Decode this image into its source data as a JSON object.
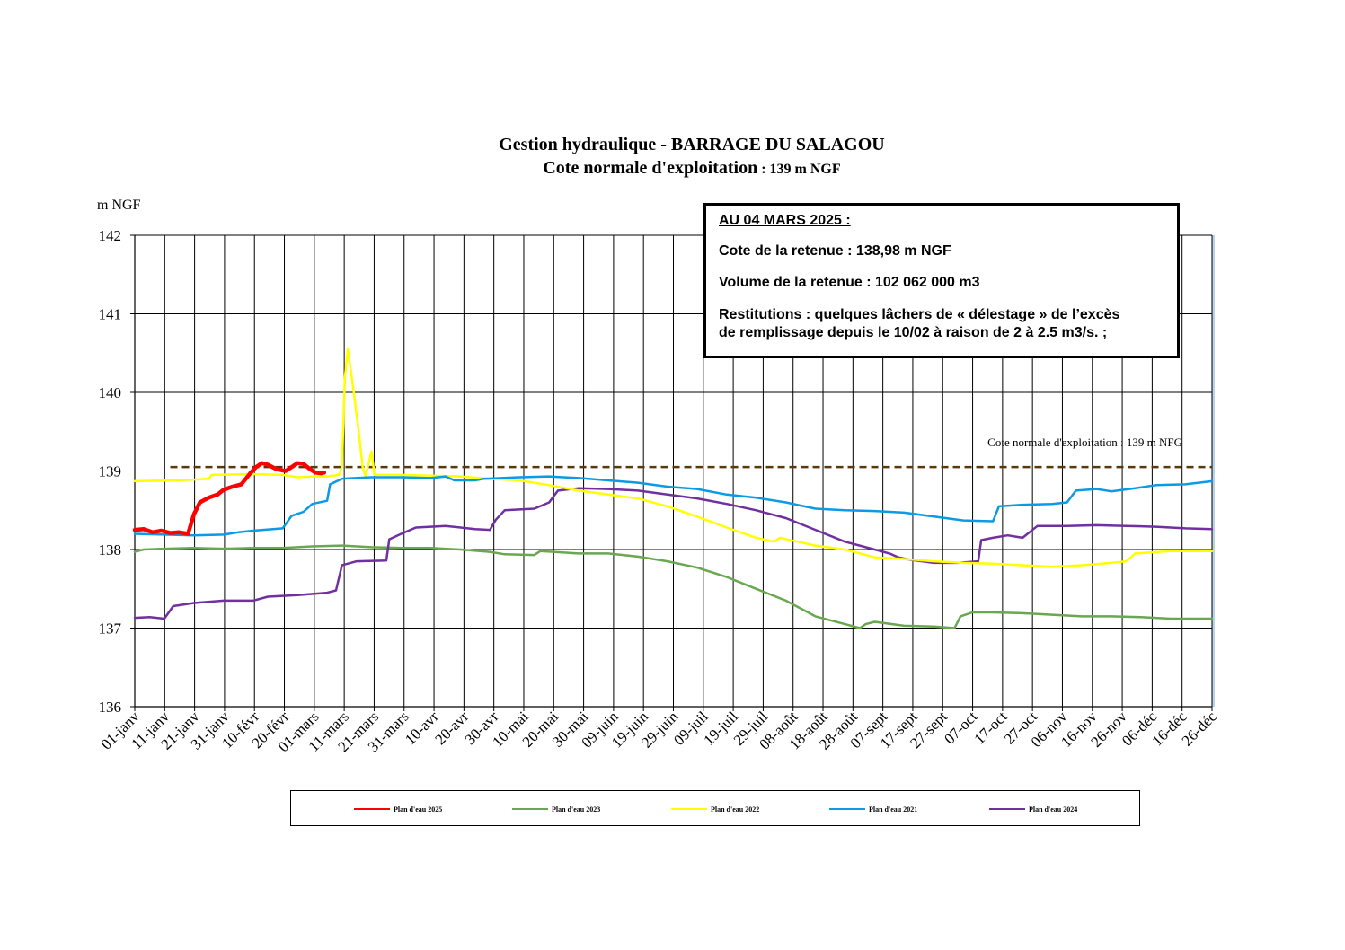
{
  "title_line1": "Gestion hydraulique - BARRAGE DU SALAGOU",
  "title_line2_main": "Cote normale d'exploitation",
  "title_line2_value": " : 139 m NGF",
  "info_box": {
    "date": "AU 04 MARS 2025 :",
    "cote": "Cote de la retenue : 138,98 m NGF",
    "volume": "Volume de la retenue : 102 062 000 m3",
    "restitutions_line1": "Restitutions : quelques lâchers de « délestage » de l’excès",
    "restitutions_line2": "de remplissage depuis le 10/02 à raison de 2 à 2.5 m3/s. ;"
  },
  "chart_data": {
    "type": "line",
    "ylabel": "m NGF",
    "ylim": [
      136,
      142
    ],
    "yticks": [
      "136",
      "137",
      "138",
      "139",
      "140",
      "141",
      "142"
    ],
    "xlim": [
      0,
      364
    ],
    "categories": [
      "01-janv",
      "11-janv",
      "21-janv",
      "31-janv",
      "10-févr",
      "20-févr",
      "01-mars",
      "11-mars",
      "21-mars",
      "31-mars",
      "10-avr",
      "20-avr",
      "30-avr",
      "10-mai",
      "20-mai",
      "30-mai",
      "09-juin",
      "19-juin",
      "29-juin",
      "09-juil",
      "19-juil",
      "29-juil",
      "08-août",
      "18-août",
      "28-août",
      "07-sept",
      "17-sept",
      "27-sept",
      "07-oct",
      "17-oct",
      "27-oct",
      "06-nov",
      "16-nov",
      "26-nov",
      "06-déc",
      "16-déc",
      "26-déc"
    ],
    "grid": true,
    "legend_position": "bottom",
    "reference_line": {
      "label": "Cote normale d'exploitation : 139 m NFG",
      "value": 139.05,
      "x_start": 12,
      "x_end": 364,
      "color": "#5a3a0a"
    },
    "series": [
      {
        "name": "Plan d'eau 2025",
        "color": "#ff0000",
        "width": 4.5,
        "points": [
          [
            0,
            138.25
          ],
          [
            3,
            138.26
          ],
          [
            6,
            138.22
          ],
          [
            9,
            138.24
          ],
          [
            12,
            138.21
          ],
          [
            15,
            138.22
          ],
          [
            18,
            138.2
          ],
          [
            20,
            138.45
          ],
          [
            22,
            138.6
          ],
          [
            25,
            138.66
          ],
          [
            28,
            138.7
          ],
          [
            30,
            138.76
          ],
          [
            33,
            138.8
          ],
          [
            36,
            138.83
          ],
          [
            39,
            138.97
          ],
          [
            41,
            139.05
          ],
          [
            43,
            139.1
          ],
          [
            45,
            139.08
          ],
          [
            48,
            139.02
          ],
          [
            51,
            139.0
          ],
          [
            53,
            139.05
          ],
          [
            55,
            139.1
          ],
          [
            57,
            139.09
          ],
          [
            59,
            139.03
          ],
          [
            61,
            138.98
          ],
          [
            63,
            138.97
          ],
          [
            64,
            138.98
          ]
        ]
      },
      {
        "name": "Plan d'eau 2023",
        "color": "#6aa84f",
        "width": 2.5,
        "points": [
          [
            0,
            137.97
          ],
          [
            3,
            138.0
          ],
          [
            10,
            138.01
          ],
          [
            20,
            138.02
          ],
          [
            30,
            138.01
          ],
          [
            40,
            138.02
          ],
          [
            50,
            138.02
          ],
          [
            60,
            138.04
          ],
          [
            70,
            138.05
          ],
          [
            80,
            138.03
          ],
          [
            90,
            138.02
          ],
          [
            100,
            138.02
          ],
          [
            110,
            138.0
          ],
          [
            120,
            137.97
          ],
          [
            125,
            137.94
          ],
          [
            135,
            137.93
          ],
          [
            137,
            137.98
          ],
          [
            150,
            137.95
          ],
          [
            160,
            137.95
          ],
          [
            170,
            137.91
          ],
          [
            180,
            137.85
          ],
          [
            190,
            137.77
          ],
          [
            200,
            137.65
          ],
          [
            210,
            137.5
          ],
          [
            220,
            137.35
          ],
          [
            230,
            137.15
          ],
          [
            240,
            137.05
          ],
          [
            245,
            137.0
          ],
          [
            247,
            137.05
          ],
          [
            250,
            137.08
          ],
          [
            260,
            137.03
          ],
          [
            270,
            137.02
          ],
          [
            277,
            137.0
          ],
          [
            279,
            137.15
          ],
          [
            283,
            137.2
          ],
          [
            290,
            137.2
          ],
          [
            300,
            137.19
          ],
          [
            310,
            137.17
          ],
          [
            320,
            137.15
          ],
          [
            330,
            137.15
          ],
          [
            340,
            137.14
          ],
          [
            350,
            137.12
          ],
          [
            364,
            137.12
          ]
        ]
      },
      {
        "name": "Plan d'eau 2022",
        "color": "#ffff00",
        "width": 2.5,
        "points": [
          [
            0,
            138.87
          ],
          [
            15,
            138.88
          ],
          [
            25,
            138.9
          ],
          [
            26,
            138.95
          ],
          [
            40,
            138.96
          ],
          [
            50,
            138.95
          ],
          [
            55,
            138.92
          ],
          [
            60,
            138.93
          ],
          [
            65,
            138.93
          ],
          [
            69,
            138.95
          ],
          [
            70,
            139.05
          ],
          [
            71,
            140.2
          ],
          [
            72,
            140.55
          ],
          [
            74,
            140.0
          ],
          [
            76,
            139.4
          ],
          [
            77,
            139.05
          ],
          [
            78,
            138.93
          ],
          [
            80,
            139.25
          ],
          [
            81,
            138.95
          ],
          [
            90,
            138.95
          ],
          [
            100,
            138.94
          ],
          [
            110,
            138.93
          ],
          [
            120,
            138.9
          ],
          [
            130,
            138.88
          ],
          [
            140,
            138.82
          ],
          [
            150,
            138.75
          ],
          [
            160,
            138.7
          ],
          [
            170,
            138.65
          ],
          [
            180,
            138.55
          ],
          [
            190,
            138.42
          ],
          [
            200,
            138.28
          ],
          [
            210,
            138.15
          ],
          [
            216,
            138.1
          ],
          [
            218,
            138.15
          ],
          [
            230,
            138.05
          ],
          [
            240,
            138.0
          ],
          [
            250,
            137.9
          ],
          [
            260,
            137.88
          ],
          [
            270,
            137.85
          ],
          [
            280,
            137.83
          ],
          [
            290,
            137.82
          ],
          [
            300,
            137.8
          ],
          [
            310,
            137.78
          ],
          [
            320,
            137.8
          ],
          [
            330,
            137.83
          ],
          [
            335,
            137.85
          ],
          [
            338,
            137.95
          ],
          [
            350,
            137.98
          ],
          [
            364,
            137.98
          ]
        ]
      },
      {
        "name": "Plan d'eau 2021",
        "color": "#0b9ae6",
        "width": 2.5,
        "points": [
          [
            0,
            138.2
          ],
          [
            10,
            138.19
          ],
          [
            20,
            138.18
          ],
          [
            30,
            138.19
          ],
          [
            35,
            138.22
          ],
          [
            40,
            138.24
          ],
          [
            50,
            138.27
          ],
          [
            53,
            138.43
          ],
          [
            57,
            138.48
          ],
          [
            60,
            138.58
          ],
          [
            65,
            138.62
          ],
          [
            66,
            138.83
          ],
          [
            70,
            138.9
          ],
          [
            80,
            138.92
          ],
          [
            90,
            138.92
          ],
          [
            100,
            138.91
          ],
          [
            105,
            138.93
          ],
          [
            108,
            138.88
          ],
          [
            115,
            138.88
          ],
          [
            118,
            138.9
          ],
          [
            130,
            138.92
          ],
          [
            140,
            138.93
          ],
          [
            150,
            138.91
          ],
          [
            160,
            138.88
          ],
          [
            170,
            138.85
          ],
          [
            180,
            138.8
          ],
          [
            190,
            138.77
          ],
          [
            200,
            138.7
          ],
          [
            210,
            138.66
          ],
          [
            220,
            138.6
          ],
          [
            230,
            138.52
          ],
          [
            240,
            138.5
          ],
          [
            250,
            138.49
          ],
          [
            260,
            138.47
          ],
          [
            270,
            138.42
          ],
          [
            280,
            138.37
          ],
          [
            290,
            138.36
          ],
          [
            292,
            138.55
          ],
          [
            300,
            138.57
          ],
          [
            310,
            138.58
          ],
          [
            315,
            138.6
          ],
          [
            318,
            138.75
          ],
          [
            325,
            138.77
          ],
          [
            330,
            138.74
          ],
          [
            338,
            138.78
          ],
          [
            345,
            138.82
          ],
          [
            355,
            138.83
          ],
          [
            364,
            138.87
          ]
        ]
      },
      {
        "name": "Plan d'eau 2024",
        "color": "#7030a0",
        "width": 2.5,
        "points": [
          [
            0,
            137.13
          ],
          [
            5,
            137.14
          ],
          [
            10,
            137.12
          ],
          [
            13,
            137.28
          ],
          [
            20,
            137.32
          ],
          [
            30,
            137.35
          ],
          [
            40,
            137.35
          ],
          [
            45,
            137.4
          ],
          [
            55,
            137.42
          ],
          [
            65,
            137.45
          ],
          [
            68,
            137.48
          ],
          [
            70,
            137.8
          ],
          [
            75,
            137.85
          ],
          [
            85,
            137.86
          ],
          [
            86,
            138.13
          ],
          [
            90,
            138.2
          ],
          [
            95,
            138.28
          ],
          [
            105,
            138.3
          ],
          [
            115,
            138.26
          ],
          [
            120,
            138.25
          ],
          [
            122,
            138.38
          ],
          [
            125,
            138.5
          ],
          [
            135,
            138.52
          ],
          [
            140,
            138.6
          ],
          [
            143,
            138.75
          ],
          [
            150,
            138.78
          ],
          [
            160,
            138.77
          ],
          [
            170,
            138.75
          ],
          [
            180,
            138.7
          ],
          [
            190,
            138.65
          ],
          [
            200,
            138.58
          ],
          [
            210,
            138.5
          ],
          [
            220,
            138.4
          ],
          [
            230,
            138.25
          ],
          [
            240,
            138.1
          ],
          [
            250,
            138.0
          ],
          [
            255,
            137.95
          ],
          [
            258,
            137.9
          ],
          [
            262,
            137.87
          ],
          [
            270,
            137.83
          ],
          [
            278,
            137.83
          ],
          [
            285,
            137.85
          ],
          [
            286,
            138.12
          ],
          [
            290,
            138.15
          ],
          [
            295,
            138.18
          ],
          [
            300,
            138.15
          ],
          [
            305,
            138.3
          ],
          [
            315,
            138.3
          ],
          [
            325,
            138.31
          ],
          [
            335,
            138.3
          ],
          [
            345,
            138.29
          ],
          [
            355,
            138.27
          ],
          [
            364,
            138.26
          ]
        ]
      }
    ]
  }
}
